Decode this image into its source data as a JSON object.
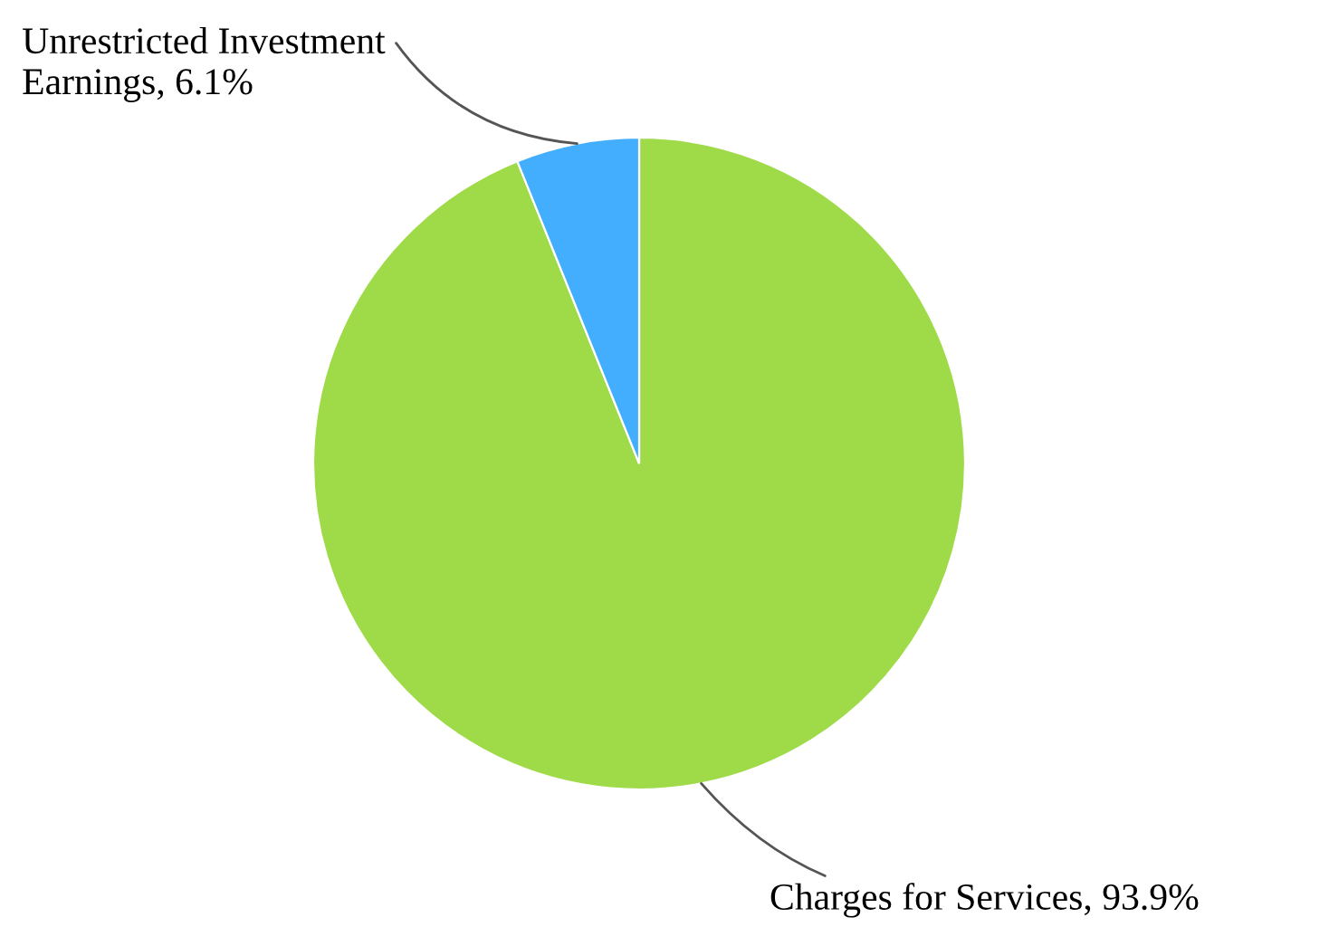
{
  "chart_data": {
    "type": "pie",
    "categories": [
      "Charges for Services, 93.9%",
      "Unrestricted Investment Earnings, 6.1%"
    ],
    "values": [
      93.9,
      6.1
    ],
    "colors": [
      "#9fdb48",
      "#43aefd"
    ]
  }
}
